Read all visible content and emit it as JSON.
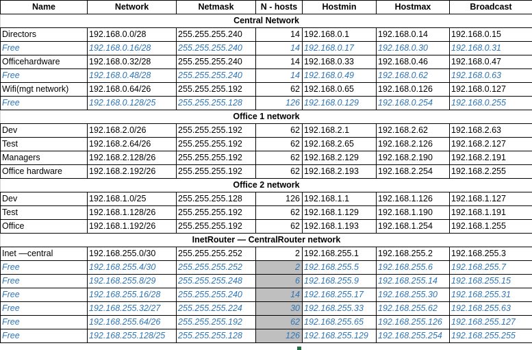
{
  "columns": [
    "Name",
    "Network",
    "Netmask",
    "N - hosts",
    "Hostmin",
    "Hostmax",
    "Broadcast"
  ],
  "sections": [
    {
      "title": "Central Network",
      "rows": [
        {
          "name": "Directors",
          "network": "192.168.0.0/28",
          "netmask": "255.255.255.240",
          "n": "14",
          "hostmin": "192.168.0.1",
          "hostmax": "192.168.0.14",
          "broadcast": "192.168.0.15",
          "free": false
        },
        {
          "name": "Free",
          "network": "192.168.0.16/28",
          "netmask": "255.255.255.240",
          "n": "14",
          "hostmin": "192.168.0.17",
          "hostmax": "192.168.0.30",
          "broadcast": "192.168.0.31",
          "free": true
        },
        {
          "name": "Officehardware",
          "network": "192.168.0.32/28",
          "netmask": "255.255.255.240",
          "n": "14",
          "hostmin": "192.168.0.33",
          "hostmax": "192.168.0.46",
          "broadcast": "192.168.0.47",
          "free": false
        },
        {
          "name": "Free",
          "network": "192.168.0.48/28",
          "netmask": "255.255.255.240",
          "n": "14",
          "hostmin": "192.168.0.49",
          "hostmax": "192.168.0.62",
          "broadcast": "192.168.0.63",
          "free": true
        },
        {
          "name": "Wifi(mgt network)",
          "network": "192.168.0.64/26",
          "netmask": "255.255.255.192",
          "n": "62",
          "hostmin": "192.168.0.65",
          "hostmax": "192.168.0.126",
          "broadcast": "192.168.0.127",
          "free": false
        },
        {
          "name": "Free",
          "network": "192.168.0.128/25",
          "netmask": "255.255.255.128",
          "n": "126",
          "hostmin": "192.168.0.129",
          "hostmax": "192.168.0.254",
          "broadcast": "192.168.0.255",
          "free": true
        }
      ]
    },
    {
      "title": "Office 1 network",
      "rows": [
        {
          "name": "Dev",
          "network": "192.168.2.0/26",
          "netmask": "255.255.255.192",
          "n": "62",
          "hostmin": "192.168.2.1",
          "hostmax": "192.168.2.62",
          "broadcast": "192.168.2.63",
          "free": false
        },
        {
          "name": "Test",
          "network": "192.168.2.64/26",
          "netmask": "255.255.255.192",
          "n": "62",
          "hostmin": "192.168.2.65",
          "hostmax": "192.168.2.126",
          "broadcast": "192.168.2.127",
          "free": false
        },
        {
          "name": "Managers",
          "network": "192.168.2.128/26",
          "netmask": "255.255.255.192",
          "n": "62",
          "hostmin": "192.168.2.129",
          "hostmax": "192.168.2.190",
          "broadcast": "192.168.2.191",
          "free": false
        },
        {
          "name": "Office hardware",
          "network": "192.168.2.192/26",
          "netmask": "255.255.255.192",
          "n": "62",
          "hostmin": "192.168.2.193",
          "hostmax": "192.168.2.254",
          "broadcast": "192.168.2.255",
          "free": false
        }
      ]
    },
    {
      "title": "Office 2 network",
      "rows": [
        {
          "name": "Dev",
          "network": "192.168.1.0/25",
          "netmask": "255.255.255.128",
          "n": "126",
          "hostmin": "192.168.1.1",
          "hostmax": "192.168.1.126",
          "broadcast": "192.168.1.127",
          "free": false
        },
        {
          "name": "Test",
          "network": "192.168.1.128/26",
          "netmask": "255.255.255.192",
          "n": "62",
          "hostmin": "192.168.1.129",
          "hostmax": "192.168.1.190",
          "broadcast": "192.168.1.191",
          "free": false
        },
        {
          "name": "Office",
          "network": "192.168.1.192/26",
          "netmask": "255.255.255.192",
          "n": "62",
          "hostmin": "192.168.1.193",
          "hostmax": "192.168.1.254",
          "broadcast": "192.168.1.255",
          "free": false
        }
      ]
    },
    {
      "title": "InetRouter — CentralRouter network",
      "rows": [
        {
          "name": "Inet —central",
          "network": "192.168.255.0/30",
          "netmask": "255.255.255.252",
          "n": "2",
          "hostmin": "192.168.255.1",
          "hostmax": "192.168.255.2",
          "broadcast": "192.168.255.3",
          "free": false
        },
        {
          "name": "Free",
          "network": "192.168.255.4/30",
          "netmask": "255.255.255.252",
          "n": "2",
          "hostmin": "192.168.255.5",
          "hostmax": "192.168.255.6",
          "broadcast": "192.168.255.7",
          "free": true
        },
        {
          "name": "Free",
          "network": "192.168.255.8/29",
          "netmask": "255.255.255.248",
          "n": "6",
          "hostmin": "192.168.255.9",
          "hostmax": "192.168.255.14",
          "broadcast": "192.168.255.15",
          "free": true
        },
        {
          "name": "Free",
          "network": "192.168.255.16/28",
          "netmask": "255.255.255.240",
          "n": "14",
          "hostmin": "192.168.255.17",
          "hostmax": "192.168.255.30",
          "broadcast": "192.168.255.31",
          "free": true
        },
        {
          "name": "Free",
          "network": "192.168.255.32/27",
          "netmask": "255.255.255.224",
          "n": "30",
          "hostmin": "192.168.255.33",
          "hostmax": "192.168.255.62",
          "broadcast": "192.168.255.63",
          "free": true
        },
        {
          "name": "Free",
          "network": "192.168.255.64/26",
          "netmask": "255.255.255.192",
          "n": "62",
          "hostmin": "192.168.255.65",
          "hostmax": "192.168.255.126",
          "broadcast": "192.168.255.127",
          "free": true
        },
        {
          "name": "Free",
          "network": "192.168.255.128/25",
          "netmask": "255.255.255.128",
          "n": "126",
          "hostmin": "192.168.255.129",
          "hostmax": "192.168.255.254",
          "broadcast": "192.168.255.255",
          "free": true
        }
      ]
    }
  ],
  "colors": {
    "free_text": "#2e75b6",
    "selected_fill": "#bfbfbf",
    "selection_border": "#217346"
  }
}
